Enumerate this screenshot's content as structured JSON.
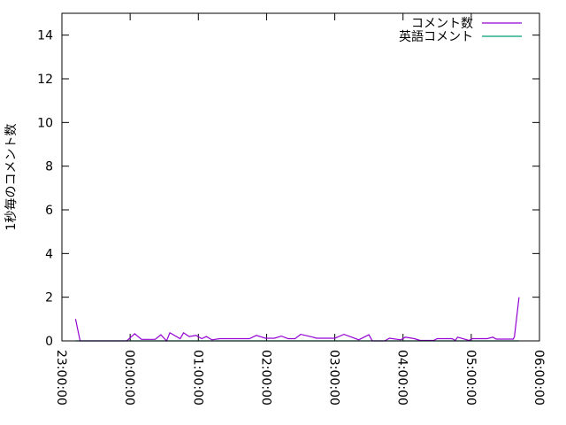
{
  "chart_data": {
    "type": "line",
    "title": "",
    "xlabel": "",
    "ylabel": "1秒毎のコメント数",
    "ylim": [
      0,
      15
    ],
    "yticks": [
      0,
      2,
      4,
      6,
      8,
      10,
      12,
      14
    ],
    "xlim": [
      "23:00:00",
      "06:00:00"
    ],
    "xticks": [
      "23:00:00",
      "00:00:00",
      "01:00:00",
      "02:00:00",
      "03:00:00",
      "04:00:00",
      "05:00:00",
      "06:00:00"
    ],
    "grid": false,
    "legend_position": "top-right",
    "x": [
      "23:12",
      "23:16",
      "23:57",
      "00:04",
      "00:10",
      "00:22",
      "00:27",
      "00:32",
      "00:35",
      "00:44",
      "00:47",
      "00:52",
      "00:58",
      "01:03",
      "01:07",
      "01:12",
      "01:19",
      "01:36",
      "01:45",
      "01:51",
      "01:59",
      "02:07",
      "02:13",
      "02:19",
      "02:25",
      "02:30",
      "02:40",
      "02:44",
      "02:54",
      "03:00",
      "03:08",
      "03:16",
      "03:21",
      "03:30",
      "03:33",
      "03:44",
      "03:48",
      "03:58",
      "04:02",
      "04:10",
      "04:15",
      "04:27",
      "04:30",
      "04:43",
      "04:46",
      "04:48",
      "04:58",
      "05:01",
      "05:14",
      "05:19",
      "05:22",
      "05:37",
      "05:38",
      "05:42"
    ],
    "series": [
      {
        "name": "コメント数",
        "color": "#9400d3",
        "values": [
          1.0,
          0,
          0,
          0.33,
          0.07,
          0.07,
          0.28,
          0,
          0.37,
          0.1,
          0.37,
          0.2,
          0.25,
          0.1,
          0.2,
          0.05,
          0.1,
          0.1,
          0.1,
          0.25,
          0.12,
          0.12,
          0.22,
          0.1,
          0.1,
          0.3,
          0.18,
          0.12,
          0.12,
          0.12,
          0.3,
          0.15,
          0.05,
          0.28,
          0,
          0,
          0.12,
          0.05,
          0.17,
          0.1,
          0.02,
          0.02,
          0.1,
          0.1,
          0.02,
          0.17,
          0.02,
          0.1,
          0.1,
          0.17,
          0.08,
          0.08,
          0.2,
          2.0
        ]
      },
      {
        "name": "英語コメント",
        "color": "#009e73",
        "values": [
          0,
          0,
          0,
          0,
          0,
          0,
          0,
          0,
          0,
          0,
          0,
          0,
          0,
          0,
          0,
          0,
          0,
          0,
          0,
          0,
          0,
          0,
          0,
          0,
          0,
          0,
          0,
          0,
          0,
          0,
          0,
          0,
          0,
          0,
          0,
          0,
          0,
          0,
          0,
          0,
          0,
          0,
          0,
          0,
          0,
          0,
          0,
          0,
          0,
          0,
          0,
          0,
          0,
          0
        ]
      }
    ]
  }
}
